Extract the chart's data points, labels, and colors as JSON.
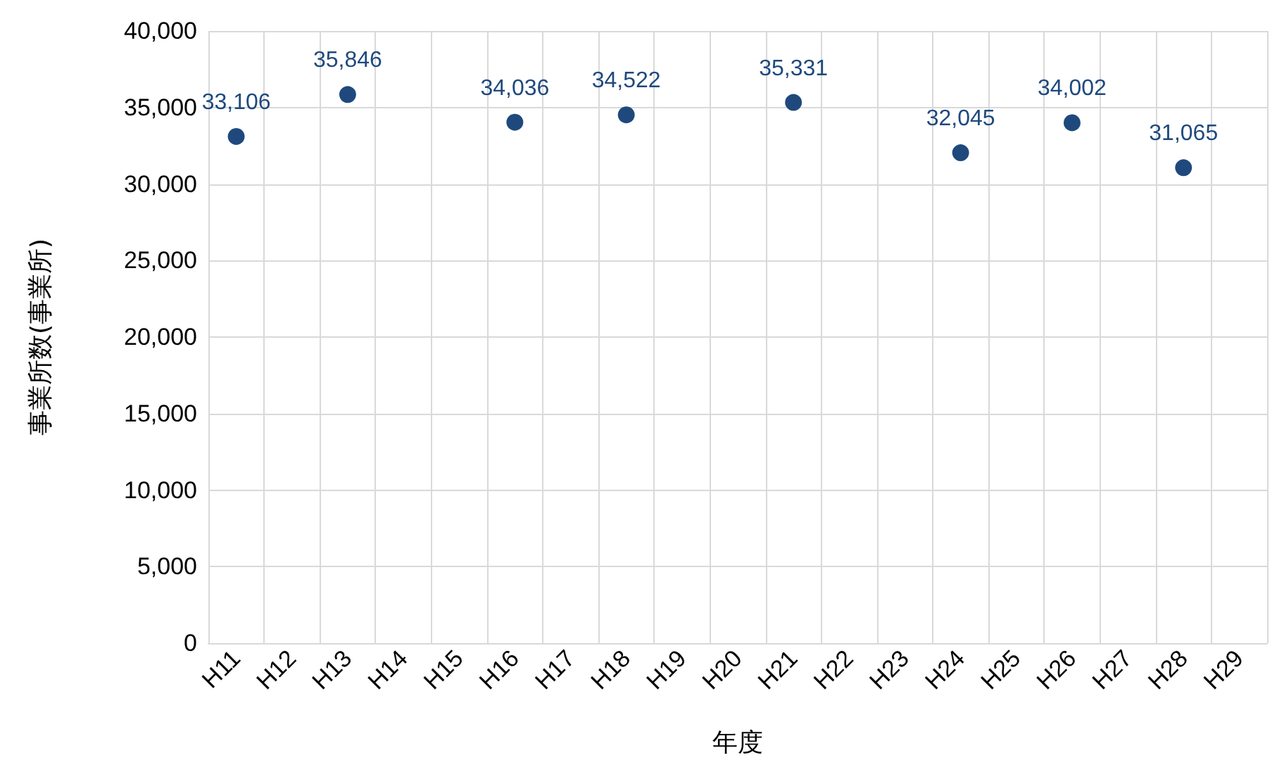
{
  "chart_data": {
    "type": "scatter",
    "xlabel": "年度",
    "ylabel": "事業所数(事業所)",
    "categories": [
      "H11",
      "H12",
      "H13",
      "H14",
      "H15",
      "H16",
      "H17",
      "H18",
      "H19",
      "H20",
      "H21",
      "H22",
      "H23",
      "H24",
      "H25",
      "H26",
      "H27",
      "H28",
      "H29"
    ],
    "series": [
      {
        "color": "#1f497d",
        "values": [
          33106,
          null,
          35846,
          null,
          null,
          34036,
          null,
          34522,
          null,
          null,
          35331,
          null,
          null,
          32045,
          null,
          34002,
          null,
          31065,
          null
        ],
        "value_labels": [
          "33,106",
          null,
          "35,846",
          null,
          null,
          "34,036",
          null,
          "34,522",
          null,
          null,
          "35,331",
          null,
          null,
          "32,045",
          null,
          "34,002",
          null,
          "31,065",
          null
        ]
      }
    ],
    "ylim": [
      0,
      40000
    ],
    "yticks": [
      0,
      {
        "value": 5000,
        "label": "5,000"
      },
      {
        "value": 10000,
        "label": "10,000"
      },
      {
        "value": 15000,
        "label": "15,000"
      },
      {
        "value": 20000,
        "label": "20,000"
      },
      {
        "value": 25000,
        "label": "25,000"
      },
      {
        "value": 30000,
        "label": "30,000"
      },
      {
        "value": 35000,
        "label": "35,000"
      },
      {
        "value": 40000,
        "label": "40,000"
      }
    ],
    "grid": true,
    "marker": "circle"
  }
}
